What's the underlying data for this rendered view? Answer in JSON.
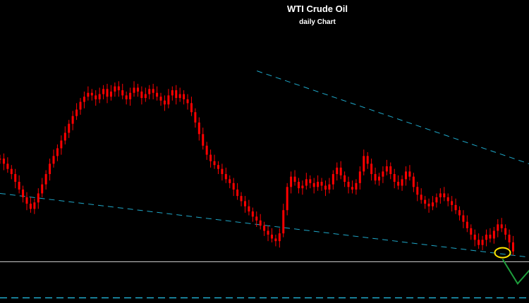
{
  "chart_data": {
    "type": "candlestick",
    "title": "WTI Crude Oil",
    "subtitle": "daily Chart",
    "colors": {
      "background": "#000000",
      "candle": "#ff0000",
      "trendline": "#1fa8c9",
      "support_line": "#c8c8c8",
      "projection": "#1e9e3c",
      "highlight_ellipse": "#ffe600",
      "title_text": "#ffffff"
    },
    "series_closes": [
      122,
      118,
      114,
      110,
      104,
      98,
      92,
      87,
      83,
      88,
      95,
      102,
      110,
      118,
      124,
      130,
      136,
      142,
      149,
      155,
      160,
      166,
      170,
      173,
      171,
      168,
      172,
      176,
      170,
      174,
      178,
      175,
      171,
      168,
      173,
      177,
      174,
      169,
      172,
      176,
      173,
      170,
      167,
      164,
      171,
      175,
      169,
      172,
      168,
      165,
      158,
      150,
      141,
      132,
      125,
      120,
      117,
      114,
      110,
      106,
      103,
      98,
      93,
      89,
      85,
      81,
      77,
      74,
      70,
      66,
      63,
      60,
      58,
      64,
      82,
      100,
      108,
      104,
      99,
      101,
      106,
      103,
      100,
      104,
      101,
      98,
      102,
      110,
      115,
      109,
      104,
      100,
      98,
      103,
      112,
      124,
      118,
      110,
      105,
      108,
      112,
      116,
      110,
      104,
      101,
      106,
      112,
      108,
      100,
      94,
      90,
      87,
      85,
      88,
      92,
      95,
      92,
      89,
      86,
      82,
      78,
      73,
      68,
      63,
      59,
      55,
      59,
      63,
      60,
      66,
      71,
      68,
      63,
      57,
      50
    ],
    "trendlines": [
      {
        "role": "upper-resistance",
        "style": "dashed",
        "from": [
          68,
          190
        ],
        "to": [
          150,
          108
        ]
      },
      {
        "role": "lower-support",
        "style": "dashed",
        "from": [
          0,
          95
        ],
        "to": [
          150,
          42
        ]
      }
    ],
    "support_level": 42,
    "bottom_level": 14,
    "projection_path": [
      [
        133,
        44
      ],
      [
        137,
        25
      ],
      [
        140,
        35
      ],
      [
        145,
        8
      ]
    ],
    "highlight": {
      "x": 133,
      "y": 49
    },
    "xlim": [
      0,
      140
    ],
    "ylim": [
      10,
      245
    ]
  }
}
